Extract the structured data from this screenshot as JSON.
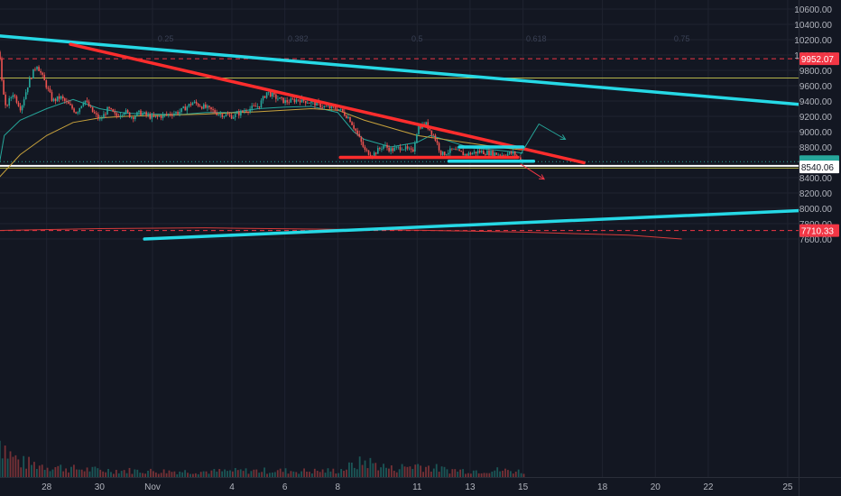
{
  "chart_data": {
    "type": "candlestick",
    "title": "",
    "xlabel": "",
    "ylabel": "",
    "ylim": [
      7572,
      10668
    ],
    "y_ticks": [
      10600,
      10400,
      10200,
      10000,
      9800,
      9600,
      9400,
      9200,
      9000,
      8800,
      8400,
      8200,
      8000,
      7800,
      7600
    ],
    "x_ticks": [
      {
        "label": "28",
        "day": -4
      },
      {
        "label": "30",
        "day": -2
      },
      {
        "label": "Nov",
        "day": 0
      },
      {
        "label": "4",
        "day": 3
      },
      {
        "label": "6",
        "day": 5
      },
      {
        "label": "8",
        "day": 7
      },
      {
        "label": "11",
        "day": 10
      },
      {
        "label": "13",
        "day": 12
      },
      {
        "label": "15",
        "day": 14
      },
      {
        "label": "18",
        "day": 17
      },
      {
        "label": "20",
        "day": 19
      },
      {
        "label": "22",
        "day": 21
      },
      {
        "label": "25",
        "day": 24
      }
    ],
    "fib_levels": [
      {
        "label": "0.25",
        "day": 0.5
      },
      {
        "label": "0.382",
        "day": 5.5
      },
      {
        "label": "0.5",
        "day": 10
      },
      {
        "label": "0.618",
        "day": 14.5
      },
      {
        "label": "0.75",
        "day": 20
      }
    ],
    "price_labels": [
      {
        "label": "9952.07",
        "value": 9952.07,
        "color": "#f23645"
      },
      {
        "label": "8609.38",
        "value": 8609.38,
        "color": "#26a69a"
      },
      {
        "label": "34:20",
        "value": 8572,
        "color": "#26a69a"
      },
      {
        "label": "8540.06",
        "value": 8540.06,
        "color": "#ffffff"
      },
      {
        "label": "7710.33",
        "value": 7710.33,
        "color": "#f23645"
      }
    ],
    "reference_lines": [
      {
        "value": 9952.07,
        "style": "dashed",
        "color": "#f23645"
      },
      {
        "value": 9700,
        "style": "solid",
        "color": "#b5b54a"
      },
      {
        "value": 8609.38,
        "style": "dotted",
        "color": "#26a69a"
      },
      {
        "value": 8555,
        "style": "solid",
        "color": "#ffffff"
      },
      {
        "value": 8525,
        "style": "solid",
        "color": "#b5b54a"
      },
      {
        "value": 7710.33,
        "style": "dashed",
        "color": "#f23645"
      }
    ],
    "trendlines": [
      {
        "color": "#26d9e6",
        "from": {
          "day": -6,
          "value": 10255
        },
        "to": {
          "day": 24.8,
          "value": 9345
        }
      },
      {
        "color": "#ff2d2d",
        "from": {
          "day": -3.1,
          "value": 10140
        },
        "to": {
          "day": 16.3,
          "value": 8595
        }
      },
      {
        "color": "#26d9e6",
        "from": {
          "day": -0.3,
          "value": 7600
        },
        "to": {
          "day": 24.8,
          "value": 7975
        }
      },
      {
        "color": "#26d9e6",
        "from": {
          "day": 11.6,
          "value": 8800
        },
        "to": {
          "day": 14,
          "value": 8800
        }
      },
      {
        "color": "#26d9e6",
        "from": {
          "day": 11.2,
          "value": 8615
        },
        "to": {
          "day": 14.4,
          "value": 8615
        }
      },
      {
        "color": "#ff2d2d",
        "from": {
          "day": 7.1,
          "value": 8665
        },
        "to": {
          "day": 13.8,
          "value": 8665
        }
      }
    ],
    "projections": [
      {
        "color": "#26a69a",
        "points": [
          {
            "day": 13.9,
            "value": 8700
          },
          {
            "day": 14.6,
            "value": 9100
          },
          {
            "day": 15.6,
            "value": 8900
          }
        ]
      },
      {
        "color": "#f23645",
        "points": [
          {
            "day": 13.9,
            "value": 8580
          },
          {
            "day": 14.8,
            "value": 8380
          }
        ]
      }
    ],
    "series": [
      {
        "name": "",
        "kind": "ema_short",
        "color": "#26a69a",
        "points": [
          [
            -6,
            8160
          ],
          [
            -5.6,
            8950
          ],
          [
            -5,
            9150
          ],
          [
            -4,
            9300
          ],
          [
            -3,
            9420
          ],
          [
            -2,
            9300
          ],
          [
            -1,
            9240
          ],
          [
            0,
            9230
          ],
          [
            1,
            9220
          ],
          [
            2,
            9250
          ],
          [
            3,
            9250
          ],
          [
            4,
            9300
          ],
          [
            5,
            9320
          ],
          [
            6,
            9330
          ],
          [
            7,
            9250
          ],
          [
            7.6,
            9000
          ],
          [
            8,
            8900
          ],
          [
            9,
            8800
          ],
          [
            10,
            8860
          ],
          [
            10.5,
            8950
          ],
          [
            11,
            8900
          ],
          [
            12,
            8790
          ],
          [
            13,
            8760
          ],
          [
            14,
            8720
          ]
        ]
      },
      {
        "name": "",
        "kind": "ema_long",
        "color": "#c8a23c",
        "points": [
          [
            -5.8,
            8400
          ],
          [
            -5,
            8700
          ],
          [
            -4,
            8950
          ],
          [
            -3,
            9120
          ],
          [
            -2,
            9180
          ],
          [
            -1,
            9200
          ],
          [
            0,
            9210
          ],
          [
            2,
            9230
          ],
          [
            4,
            9260
          ],
          [
            6,
            9300
          ],
          [
            7,
            9280
          ],
          [
            8,
            9150
          ],
          [
            9,
            9050
          ],
          [
            10,
            8950
          ],
          [
            11,
            8900
          ],
          [
            12,
            8850
          ],
          [
            13,
            8800
          ],
          [
            14,
            8760
          ]
        ]
      },
      {
        "name": "",
        "kind": "ma_long",
        "color": "#d63a3a",
        "points": [
          [
            -6,
            7710
          ],
          [
            -2,
            7735
          ],
          [
            2,
            7745
          ],
          [
            6,
            7730
          ],
          [
            10,
            7715
          ],
          [
            14,
            7690
          ],
          [
            18,
            7650
          ],
          [
            20,
            7600
          ]
        ]
      }
    ],
    "price_path": [
      [
        -6,
        8300
      ],
      [
        -5.85,
        10150
      ],
      [
        -5.6,
        9300
      ],
      [
        -5.3,
        9500
      ],
      [
        -5.0,
        9300
      ],
      [
        -4.7,
        9650
      ],
      [
        -4.4,
        9880
      ],
      [
        -4.1,
        9650
      ],
      [
        -3.8,
        9400
      ],
      [
        -3.5,
        9450
      ],
      [
        -3.2,
        9350
      ],
      [
        -2.9,
        9250
      ],
      [
        -2.6,
        9420
      ],
      [
        -2.3,
        9260
      ],
      [
        -2.0,
        9150
      ],
      [
        -1.7,
        9300
      ],
      [
        -1.4,
        9200
      ],
      [
        -1.1,
        9270
      ],
      [
        -0.8,
        9190
      ],
      [
        -0.5,
        9250
      ],
      [
        0,
        9180
      ],
      [
        0.5,
        9220
      ],
      [
        1,
        9260
      ],
      [
        1.5,
        9380
      ],
      [
        2,
        9310
      ],
      [
        2.5,
        9230
      ],
      [
        3,
        9200
      ],
      [
        3.5,
        9280
      ],
      [
        4,
        9340
      ],
      [
        4.3,
        9520
      ],
      [
        4.6,
        9450
      ],
      [
        5,
        9390
      ],
      [
        5.5,
        9420
      ],
      [
        6,
        9380
      ],
      [
        6.5,
        9320
      ],
      [
        7,
        9300
      ],
      [
        7.4,
        9180
      ],
      [
        7.7,
        8980
      ],
      [
        8,
        8750
      ],
      [
        8.3,
        8700
      ],
      [
        8.7,
        8820
      ],
      [
        9,
        8760
      ],
      [
        9.4,
        8800
      ],
      [
        9.8,
        8730
      ],
      [
        10,
        9060
      ],
      [
        10.3,
        9100
      ],
      [
        10.6,
        8950
      ],
      [
        10.9,
        8700
      ],
      [
        11.3,
        8760
      ],
      [
        11.8,
        8700
      ],
      [
        12.3,
        8740
      ],
      [
        12.8,
        8720
      ],
      [
        13.2,
        8700
      ],
      [
        13.6,
        8720
      ],
      [
        14,
        8600
      ]
    ],
    "volume_path": [
      [
        -6,
        210
      ],
      [
        -5.8,
        420
      ],
      [
        -5.5,
        260
      ],
      [
        -5,
        160
      ],
      [
        -4,
        120
      ],
      [
        -3,
        90
      ],
      [
        -2,
        75
      ],
      [
        -1,
        70
      ],
      [
        0,
        65
      ],
      [
        2,
        60
      ],
      [
        4,
        70
      ],
      [
        6,
        65
      ],
      [
        7,
        70
      ],
      [
        7.7,
        140
      ],
      [
        8,
        170
      ],
      [
        9,
        90
      ],
      [
        10,
        130
      ],
      [
        11,
        80
      ],
      [
        12,
        70
      ],
      [
        13,
        75
      ],
      [
        14,
        60
      ]
    ]
  }
}
